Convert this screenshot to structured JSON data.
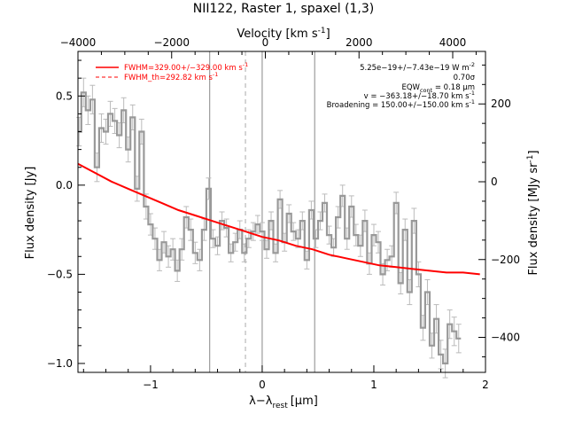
{
  "chart_data": {
    "type": "line",
    "title": "NII122, Raster 1, spaxel (1,3)",
    "xlabel_main": "λ",
    "xlabel_sub": "rest",
    "xlabel_unit": "[μm]",
    "xlabel_minus": "−λ",
    "ylabel": "Flux density [Jy]",
    "top_xlabel": "Velocity [km s",
    "top_xlabel_exp": "-1",
    "top_xlabel_end": "]",
    "right_ylabel": "Flux density [MJy sr",
    "right_ylabel_exp": "-1",
    "right_ylabel_end": "]",
    "xlim": [
      -1.65,
      2.0
    ],
    "ylim": [
      -1.05,
      0.75
    ],
    "top_xlim": [
      -4000,
      4700
    ],
    "right_ylim": [
      -490,
      335
    ],
    "xticks": [
      -1,
      0,
      1,
      2
    ],
    "yticks": [
      -1.0,
      -0.5,
      0.0,
      0.5
    ],
    "top_xticks": [
      -4000,
      -2000,
      0,
      2000,
      4000
    ],
    "right_yticks": [
      -400,
      -200,
      0,
      200
    ],
    "vlines_solid": [
      -0.47,
      0.0,
      0.47
    ],
    "vline_dashed": -0.15,
    "legend": [
      {
        "label": "FWHM=329.00+/−329.00 km s",
        "exp": "-1",
        "style": "solid",
        "color": "#ff0000"
      },
      {
        "label": "FWHM_th=292.82 km s",
        "exp": "-1",
        "style": "dashed",
        "color": "#ff0000"
      }
    ],
    "annotations": [
      {
        "text": "5.25e−19+/−7.43e−19 W m",
        "exp": "-2"
      },
      {
        "text": "0.70σ"
      },
      {
        "text": "EQW",
        "sub": "cont",
        "text2": " = 0.18 μm"
      },
      {
        "text": "v = −363.18+/−18.70 km s",
        "exp": "-1"
      },
      {
        "text": "Broadening = 150.00+/−150.00 km s",
        "exp": "-1"
      }
    ],
    "series": [
      {
        "style": "step",
        "color": "#999999",
        "x": [
          -1.64,
          -1.6,
          -1.56,
          -1.52,
          -1.48,
          -1.44,
          -1.4,
          -1.36,
          -1.32,
          -1.28,
          -1.24,
          -1.2,
          -1.16,
          -1.12,
          -1.08,
          -1.04,
          -1.0,
          -0.96,
          -0.92,
          -0.88,
          -0.84,
          -0.8,
          -0.76,
          -0.72,
          -0.68,
          -0.64,
          -0.6,
          -0.56,
          -0.52,
          -0.48,
          -0.44,
          -0.4,
          -0.36,
          -0.32,
          -0.28,
          -0.24,
          -0.2,
          -0.16,
          -0.12,
          -0.08,
          -0.04,
          0.0,
          0.04,
          0.08,
          0.12,
          0.16,
          0.2,
          0.24,
          0.28,
          0.32,
          0.36,
          0.4,
          0.44,
          0.48,
          0.52,
          0.56,
          0.6,
          0.64,
          0.68,
          0.72,
          0.76,
          0.8,
          0.84,
          0.88,
          0.92,
          0.96,
          1.0,
          1.04,
          1.08,
          1.12,
          1.16,
          1.2,
          1.24,
          1.28,
          1.32,
          1.36,
          1.4,
          1.44,
          1.48,
          1.52,
          1.56,
          1.6,
          1.64,
          1.68,
          1.72,
          1.76
        ],
        "y": [
          0.3,
          0.52,
          0.42,
          0.48,
          0.1,
          0.32,
          0.3,
          0.4,
          0.36,
          0.28,
          0.42,
          0.2,
          0.38,
          -0.02,
          0.3,
          -0.12,
          -0.22,
          -0.3,
          -0.42,
          -0.32,
          -0.4,
          -0.36,
          -0.48,
          -0.36,
          -0.18,
          -0.25,
          -0.38,
          -0.42,
          -0.25,
          -0.02,
          -0.3,
          -0.34,
          -0.2,
          -0.24,
          -0.38,
          -0.32,
          -0.25,
          -0.38,
          -0.3,
          -0.26,
          -0.22,
          -0.26,
          -0.36,
          -0.2,
          -0.38,
          -0.08,
          -0.32,
          -0.16,
          -0.26,
          -0.3,
          -0.2,
          -0.42,
          -0.14,
          -0.3,
          -0.2,
          -0.1,
          -0.28,
          -0.35,
          -0.18,
          -0.06,
          -0.3,
          -0.12,
          -0.28,
          -0.34,
          -0.2,
          -0.44,
          -0.28,
          -0.32,
          -0.5,
          -0.42,
          -0.4,
          -0.1,
          -0.55,
          -0.25,
          -0.6,
          -0.2,
          -0.5,
          -0.8,
          -0.6,
          -0.9,
          -0.75,
          -0.95,
          -1.0,
          -0.78,
          -0.82,
          -0.86
        ],
        "err": [
          0.08,
          0.08,
          0.08,
          0.08,
          0.08,
          0.08,
          0.07,
          0.07,
          0.07,
          0.07,
          0.07,
          0.07,
          0.07,
          0.07,
          0.07,
          0.07,
          0.06,
          0.06,
          0.06,
          0.06,
          0.06,
          0.06,
          0.06,
          0.06,
          0.06,
          0.06,
          0.06,
          0.06,
          0.06,
          0.06,
          0.05,
          0.05,
          0.05,
          0.05,
          0.05,
          0.05,
          0.05,
          0.05,
          0.05,
          0.05,
          0.05,
          0.05,
          0.05,
          0.05,
          0.05,
          0.05,
          0.05,
          0.05,
          0.05,
          0.05,
          0.05,
          0.05,
          0.05,
          0.05,
          0.05,
          0.05,
          0.05,
          0.05,
          0.06,
          0.06,
          0.06,
          0.06,
          0.06,
          0.06,
          0.06,
          0.06,
          0.06,
          0.06,
          0.06,
          0.06,
          0.06,
          0.06,
          0.06,
          0.06,
          0.07,
          0.07,
          0.07,
          0.07,
          0.07,
          0.07,
          0.08,
          0.08,
          0.08,
          0.08,
          0.08,
          0.08
        ]
      },
      {
        "style": "line",
        "color": "#ff0000",
        "x": [
          -1.65,
          -1.5,
          -1.35,
          -1.2,
          -1.05,
          -0.9,
          -0.75,
          -0.6,
          -0.45,
          -0.3,
          -0.15,
          0.0,
          0.15,
          0.3,
          0.45,
          0.6,
          0.75,
          0.9,
          1.05,
          1.2,
          1.35,
          1.5,
          1.65,
          1.8,
          1.95
        ],
        "y": [
          0.12,
          0.07,
          0.02,
          -0.02,
          -0.06,
          -0.1,
          -0.14,
          -0.17,
          -0.2,
          -0.23,
          -0.26,
          -0.29,
          -0.31,
          -0.34,
          -0.36,
          -0.39,
          -0.41,
          -0.43,
          -0.45,
          -0.46,
          -0.47,
          -0.48,
          -0.49,
          -0.49,
          -0.5
        ]
      }
    ]
  }
}
